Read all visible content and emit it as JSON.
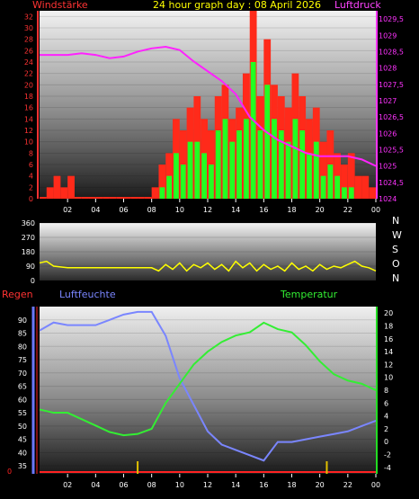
{
  "header": {
    "left_label": "Windstärke",
    "title": "24 hour graph day : 08 April 2026",
    "right_label": "Luftdruck"
  },
  "colors": {
    "wind_gust": "#ff2a1a",
    "wind_avg": "#22ff22",
    "pressure": "#ff22ff",
    "direction": "#ffff00",
    "humidity": "#7a86ff",
    "temperature": "#33ee33",
    "rain": "#ff2222",
    "left_axis_text": "#ff3333",
    "right_axis_text": "#ff33ff",
    "time_axis_text": "#ffffff"
  },
  "bottom_header": {
    "rain_label": "Regen",
    "humidity_label": "Luftfeuchte",
    "temperature_label": "Temperatur"
  },
  "compass": [
    "N",
    "W",
    "S",
    "O",
    "N"
  ],
  "chart_data": [
    {
      "type": "bar",
      "id": "wind-pressure",
      "x_ticks": [
        "02",
        "04",
        "06",
        "08",
        "10",
        "12",
        "14",
        "16",
        "18",
        "20",
        "22",
        "00"
      ],
      "left_axis": {
        "label": "Windstärke",
        "ticks": [
          0,
          2,
          4,
          6,
          8,
          10,
          12,
          14,
          16,
          18,
          20,
          22,
          24,
          26,
          28,
          30,
          32
        ]
      },
      "right_axis": {
        "label": "Luftdruck",
        "ticks": [
          "1024",
          "1024,5",
          "1025",
          "1025,5",
          "1026",
          "1026,5",
          "1027",
          "1027,5",
          "1028",
          "1028,5",
          "1029",
          "1029,5"
        ]
      },
      "series": [
        {
          "type": "bar",
          "color_key": "wind_gust",
          "x": [
            0,
            0.5,
            1,
            1.5,
            2,
            2.5,
            3,
            3.5,
            4,
            4.5,
            5,
            5.5,
            6,
            6.5,
            7,
            7.5,
            8,
            8.5,
            9,
            9.5,
            10,
            10.5,
            11,
            11.5,
            12,
            12.5,
            13,
            13.5,
            14,
            14.5,
            15,
            15.5,
            16,
            16.5,
            17,
            17.5,
            18,
            18.5,
            19,
            19.5,
            20,
            20.5,
            21,
            21.5,
            22,
            22.5,
            23,
            23.5
          ],
          "values": [
            0,
            2,
            4,
            2,
            4,
            0,
            0,
            0,
            0,
            0,
            0,
            0,
            0,
            0,
            0,
            0,
            2,
            6,
            8,
            14,
            12,
            16,
            18,
            14,
            12,
            18,
            20,
            14,
            16,
            22,
            33,
            18,
            28,
            20,
            18,
            16,
            22,
            18,
            14,
            16,
            10,
            12,
            8,
            6,
            8,
            4,
            4,
            2
          ]
        },
        {
          "type": "bar",
          "color_key": "wind_avg",
          "x": [
            0,
            0.5,
            1,
            1.5,
            2,
            2.5,
            3,
            3.5,
            4,
            4.5,
            5,
            5.5,
            6,
            6.5,
            7,
            7.5,
            8,
            8.5,
            9,
            9.5,
            10,
            10.5,
            11,
            11.5,
            12,
            12.5,
            13,
            13.5,
            14,
            14.5,
            15,
            15.5,
            16,
            16.5,
            17,
            17.5,
            18,
            18.5,
            19,
            19.5,
            20,
            20.5,
            21,
            21.5,
            22,
            22.5,
            23,
            23.5
          ],
          "values": [
            0,
            0,
            0,
            0,
            0,
            0,
            0,
            0,
            0,
            0,
            0,
            0,
            0,
            0,
            0,
            0,
            0,
            2,
            4,
            8,
            6,
            10,
            10,
            8,
            6,
            12,
            14,
            10,
            12,
            14,
            24,
            12,
            20,
            14,
            12,
            10,
            14,
            12,
            8,
            10,
            4,
            6,
            4,
            2,
            2,
            0,
            0,
            0
          ]
        },
        {
          "type": "line",
          "color_key": "pressure",
          "x": [
            0,
            1,
            2,
            3,
            4,
            5,
            6,
            7,
            8,
            9,
            10,
            11,
            12,
            13,
            14,
            15,
            16,
            17,
            18,
            19,
            20,
            21,
            22,
            23,
            24
          ],
          "values": [
            1028.4,
            1028.4,
            1028.4,
            1028.45,
            1028.4,
            1028.3,
            1028.35,
            1028.5,
            1028.6,
            1028.65,
            1028.55,
            1028.2,
            1027.9,
            1027.6,
            1027.2,
            1026.5,
            1026.1,
            1025.8,
            1025.6,
            1025.4,
            1025.3,
            1025.3,
            1025.3,
            1025.2,
            1025.0
          ]
        }
      ]
    },
    {
      "type": "line",
      "id": "wind-direction",
      "y_ticks": [
        0,
        90,
        180,
        270,
        360
      ],
      "series": [
        {
          "name": "",
          "color_key": "direction",
          "x": [
            0,
            0.5,
            1,
            2,
            3,
            4,
            5,
            6,
            7,
            8,
            8.5,
            9,
            9.5,
            10,
            10.5,
            11,
            11.5,
            12,
            12.5,
            13,
            13.5,
            14,
            14.5,
            15,
            15.5,
            16,
            16.5,
            17,
            17.5,
            18,
            18.5,
            19,
            19.5,
            20,
            20.5,
            21,
            21.5,
            22,
            22.5,
            23,
            23.5,
            24
          ],
          "values": [
            110,
            120,
            90,
            80,
            80,
            80,
            80,
            80,
            80,
            80,
            60,
            100,
            70,
            110,
            60,
            100,
            80,
            110,
            70,
            100,
            60,
            120,
            80,
            110,
            60,
            100,
            70,
            90,
            60,
            110,
            70,
            90,
            60,
            100,
            70,
            90,
            80,
            100,
            120,
            90,
            80,
            60
          ]
        }
      ]
    },
    {
      "type": "line",
      "id": "humidity-temperature",
      "left_axis": {
        "label": "Luftfeuchte",
        "ticks": [
          35,
          40,
          45,
          50,
          55,
          60,
          65,
          70,
          75,
          80,
          85,
          90
        ]
      },
      "right_axis": {
        "label": "Temperatur",
        "ticks": [
          -4,
          -2,
          0,
          2,
          4,
          6,
          8,
          10,
          12,
          14,
          16,
          18,
          20
        ]
      },
      "x_ticks": [
        "02",
        "04",
        "06",
        "08",
        "10",
        "12",
        "14",
        "16",
        "18",
        "20",
        "22",
        "00"
      ],
      "series": [
        {
          "color_key": "humidity",
          "x": [
            0,
            1,
            2,
            3,
            4,
            5,
            6,
            7,
            8,
            9,
            10,
            11,
            12,
            13,
            14,
            15,
            16,
            17,
            18,
            19,
            20,
            21,
            22,
            23,
            24
          ],
          "values": [
            86,
            89,
            88,
            88,
            88,
            90,
            92,
            93,
            93,
            84,
            68,
            58,
            48,
            43,
            41,
            39,
            37,
            44,
            44,
            45,
            46,
            47,
            48,
            50,
            52
          ]
        },
        {
          "color_key": "temperature",
          "x": [
            0,
            1,
            2,
            3,
            4,
            5,
            6,
            7,
            8,
            9,
            10,
            11,
            12,
            13,
            14,
            15,
            16,
            17,
            18,
            19,
            20,
            21,
            22,
            23,
            24
          ],
          "values": [
            5,
            4.5,
            4.5,
            3.5,
            2.5,
            1.5,
            1.0,
            1.2,
            2.0,
            6.0,
            9.0,
            12.0,
            14.0,
            15.5,
            16.5,
            17.0,
            18.5,
            17.5,
            17.0,
            15.0,
            12.5,
            10.5,
            9.5,
            9.0,
            8.0
          ]
        },
        {
          "color_key": "rain",
          "x": [
            0,
            24
          ],
          "values": [
            0,
            0
          ]
        }
      ],
      "rain_marks_at_hours": [
        7,
        20.5
      ]
    }
  ]
}
